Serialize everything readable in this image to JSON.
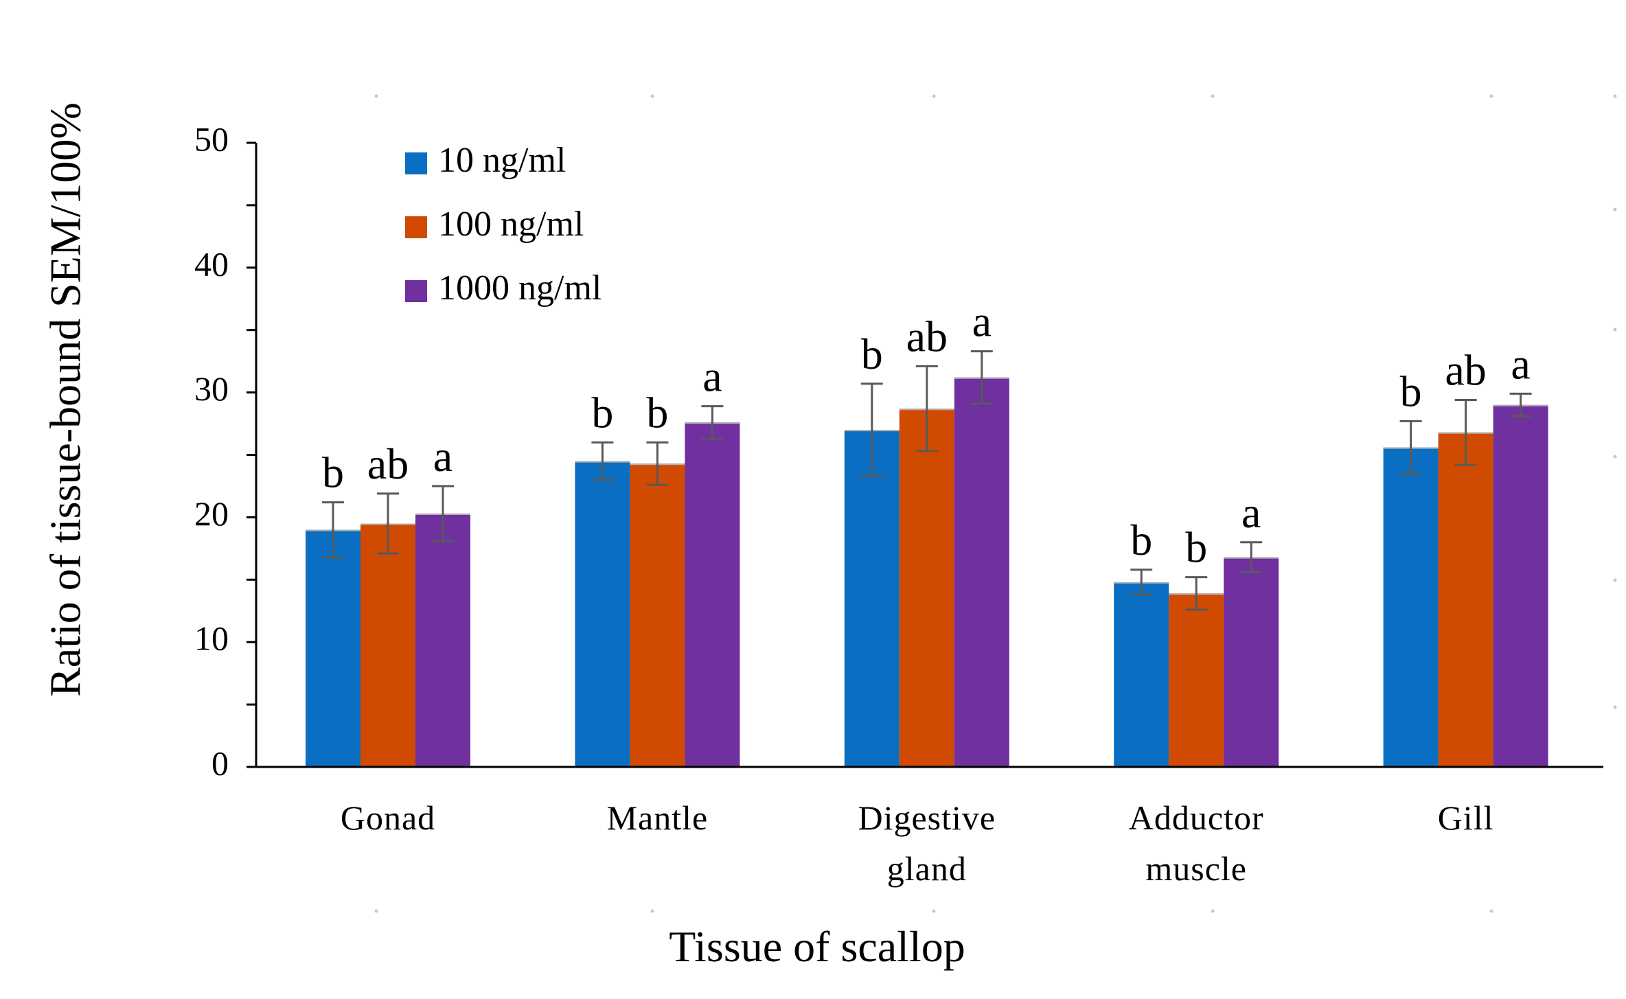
{
  "chart_data": {
    "type": "bar",
    "title": "",
    "xlabel": "Tissue of scallop",
    "ylabel": "Ratio of tissue-bound SEM/100%",
    "ylim": [
      0,
      50
    ],
    "yticks": [
      0,
      10,
      20,
      30,
      40,
      50
    ],
    "legend_position": "top-left",
    "categories": [
      [
        "Gonad"
      ],
      [
        "Mantle"
      ],
      [
        "Digestive",
        "gland"
      ],
      [
        "Adductor",
        "muscle"
      ],
      [
        "Gill"
      ]
    ],
    "series": [
      {
        "name": "10 ng/ml",
        "color": "#0A6FC2",
        "values": [
          19.0,
          24.5,
          27.0,
          14.8,
          25.6
        ],
        "errors": [
          2.2,
          1.5,
          3.7,
          1.0,
          2.1
        ],
        "letters": [
          "b",
          "b",
          "b",
          "b",
          "b"
        ]
      },
      {
        "name": "100 ng/ml",
        "color": "#D04A02",
        "values": [
          19.5,
          24.3,
          28.7,
          13.9,
          26.8
        ],
        "errors": [
          2.4,
          1.7,
          3.4,
          1.3,
          2.6
        ],
        "letters": [
          "ab",
          "b",
          "ab",
          "b",
          "ab"
        ]
      },
      {
        "name": "1000 ng/ml",
        "color": "#7030A0",
        "values": [
          20.3,
          27.6,
          31.2,
          16.8,
          29.0
        ],
        "errors": [
          2.2,
          1.3,
          2.1,
          1.2,
          0.9
        ],
        "letters": [
          "a",
          "a",
          "a",
          "a",
          "a"
        ]
      }
    ]
  }
}
